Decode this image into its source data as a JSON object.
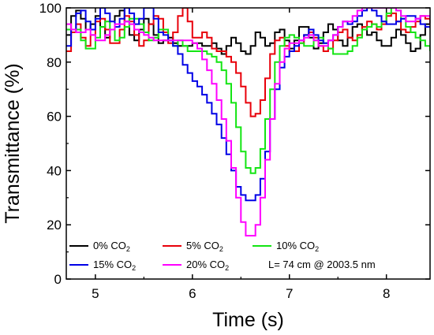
{
  "chart_data": {
    "type": "line",
    "xlabel": "Time (s)",
    "ylabel": "Transmittance (%)",
    "xlim": [
      4.7,
      8.45
    ],
    "ylim": [
      0,
      100
    ],
    "xticks": [
      5,
      6,
      7,
      8
    ],
    "yticks": [
      0,
      20,
      40,
      60,
      80,
      100
    ],
    "grid": false,
    "legend_position": "bottom-left inside",
    "annotation": "L= 74 cm @ 2003.5 nm",
    "series": [
      {
        "name": "0% CO",
        "name_subscript": "2",
        "color": "#000000",
        "x": [
          4.7,
          4.75,
          4.8,
          4.85,
          4.9,
          4.95,
          5.0,
          5.05,
          5.1,
          5.15,
          5.2,
          5.25,
          5.3,
          5.35,
          5.4,
          5.45,
          5.5,
          5.55,
          5.6,
          5.65,
          5.7,
          5.75,
          5.8,
          5.85,
          5.9,
          5.95,
          6.0,
          6.05,
          6.1,
          6.15,
          6.2,
          6.25,
          6.3,
          6.35,
          6.4,
          6.45,
          6.5,
          6.55,
          6.6,
          6.65,
          6.7,
          6.75,
          6.8,
          6.85,
          6.9,
          6.95,
          7.0,
          7.05,
          7.1,
          7.15,
          7.2,
          7.25,
          7.3,
          7.35,
          7.4,
          7.45,
          7.5,
          7.55,
          7.6,
          7.65,
          7.7,
          7.75,
          7.8,
          7.85,
          7.9,
          7.95,
          8.0,
          8.05,
          8.1,
          8.15,
          8.2,
          8.25,
          8.3,
          8.35,
          8.4,
          8.45
        ],
        "y": [
          90,
          97,
          99,
          96,
          92,
          94,
          97,
          93,
          89,
          92,
          97,
          99,
          95,
          90,
          88,
          92,
          96,
          94,
          90,
          87,
          88,
          89,
          87,
          86,
          86,
          86,
          87,
          87,
          86,
          86,
          87,
          85,
          83,
          86,
          89,
          87,
          84,
          83,
          86,
          91,
          89,
          86,
          87,
          91,
          92,
          88,
          85,
          88,
          93,
          93,
          89,
          85,
          87,
          91,
          94,
          92,
          88,
          86,
          89,
          93,
          94,
          92,
          90,
          91,
          88,
          86,
          86,
          89,
          92,
          90,
          87,
          84,
          85,
          90,
          94,
          95
        ]
      },
      {
        "name": "5% CO",
        "name_subscript": "2",
        "color": "#e8000a",
        "x": [
          4.7,
          4.75,
          4.8,
          4.85,
          4.9,
          4.95,
          5.0,
          5.05,
          5.1,
          5.15,
          5.2,
          5.25,
          5.3,
          5.35,
          5.4,
          5.45,
          5.5,
          5.55,
          5.6,
          5.65,
          5.7,
          5.75,
          5.8,
          5.85,
          5.9,
          5.95,
          6.0,
          6.05,
          6.1,
          6.15,
          6.2,
          6.25,
          6.3,
          6.35,
          6.4,
          6.45,
          6.5,
          6.55,
          6.6,
          6.65,
          6.7,
          6.75,
          6.8,
          6.85,
          6.9,
          6.95,
          7.0,
          7.05,
          7.1,
          7.15,
          7.2,
          7.25,
          7.3,
          7.35,
          7.4,
          7.45,
          7.5,
          7.55,
          7.6,
          7.65,
          7.7,
          7.75,
          7.8,
          7.85,
          7.9,
          7.95,
          8.0,
          8.05,
          8.1,
          8.15,
          8.2,
          8.25,
          8.3,
          8.35,
          8.4,
          8.45
        ],
        "y": [
          84,
          91,
          94,
          89,
          86,
          90,
          95,
          96,
          92,
          87,
          87,
          92,
          97,
          95,
          90,
          86,
          88,
          94,
          97,
          96,
          91,
          87,
          91,
          97,
          100,
          95,
          89,
          89,
          91,
          89,
          85,
          84,
          84,
          82,
          80,
          76,
          71,
          65,
          60,
          61,
          66,
          74,
          83,
          88,
          89,
          86,
          84,
          84,
          87,
          90,
          91,
          89,
          86,
          84,
          85,
          88,
          91,
          92,
          89,
          88,
          90,
          93,
          95,
          94,
          92,
          94,
          97,
          98,
          95,
          92,
          91,
          93,
          95,
          97,
          96,
          94
        ]
      },
      {
        "name": "10% CO",
        "name_subscript": "2",
        "color": "#13e513",
        "x": [
          4.7,
          4.75,
          4.8,
          4.85,
          4.9,
          4.95,
          5.0,
          5.05,
          5.1,
          5.15,
          5.2,
          5.25,
          5.3,
          5.35,
          5.4,
          5.45,
          5.5,
          5.55,
          5.6,
          5.65,
          5.7,
          5.75,
          5.8,
          5.85,
          5.9,
          5.95,
          6.0,
          6.05,
          6.1,
          6.15,
          6.2,
          6.25,
          6.3,
          6.35,
          6.4,
          6.45,
          6.5,
          6.55,
          6.6,
          6.65,
          6.7,
          6.75,
          6.8,
          6.85,
          6.9,
          6.95,
          7.0,
          7.05,
          7.1,
          7.15,
          7.2,
          7.25,
          7.3,
          7.35,
          7.4,
          7.45,
          7.5,
          7.55,
          7.6,
          7.65,
          7.7,
          7.75,
          7.8,
          7.85,
          7.9,
          7.95,
          8.0,
          8.05,
          8.1,
          8.15,
          8.2,
          8.25,
          8.3,
          8.35,
          8.4,
          8.45
        ],
        "y": [
          92,
          92,
          92,
          88,
          85,
          85,
          89,
          93,
          95,
          92,
          88,
          89,
          93,
          96,
          96,
          94,
          91,
          88,
          89,
          92,
          92,
          88,
          86,
          88,
          86,
          84,
          84,
          84,
          84,
          83,
          82,
          80,
          77,
          72,
          65,
          56,
          47,
          41,
          39,
          41,
          48,
          59,
          70,
          80,
          86,
          89,
          90,
          89,
          87,
          86,
          86,
          88,
          89,
          87,
          85,
          83,
          83,
          83,
          84,
          86,
          89,
          92,
          93,
          94,
          93,
          95,
          98,
          100,
          99,
          96,
          93,
          91,
          89,
          88,
          86,
          84
        ]
      },
      {
        "name": "15% CO",
        "name_subscript": "2",
        "color": "#0000e6",
        "x": [
          4.7,
          4.75,
          4.8,
          4.85,
          4.9,
          4.95,
          5.0,
          5.05,
          5.1,
          5.15,
          5.2,
          5.25,
          5.3,
          5.35,
          5.4,
          5.45,
          5.5,
          5.55,
          5.6,
          5.65,
          5.7,
          5.75,
          5.8,
          5.85,
          5.9,
          5.95,
          6.0,
          6.05,
          6.1,
          6.15,
          6.2,
          6.25,
          6.3,
          6.35,
          6.4,
          6.45,
          6.5,
          6.55,
          6.6,
          6.65,
          6.7,
          6.75,
          6.8,
          6.85,
          6.9,
          6.95,
          7.0,
          7.05,
          7.1,
          7.15,
          7.2,
          7.25,
          7.3,
          7.35,
          7.4,
          7.45,
          7.5,
          7.55,
          7.6,
          7.65,
          7.7,
          7.75,
          7.8,
          7.85,
          7.9,
          7.95,
          8.0,
          8.05,
          8.1,
          8.15,
          8.2,
          8.25,
          8.3,
          8.35,
          8.4,
          8.45
        ],
        "y": [
          86,
          92,
          98,
          99,
          95,
          92,
          96,
          100,
          98,
          95,
          93,
          96,
          100,
          98,
          94,
          96,
          100,
          100,
          96,
          91,
          90,
          88,
          86,
          83,
          79,
          76,
          73,
          71,
          68,
          65,
          61,
          57,
          52,
          46,
          40,
          34,
          31,
          29,
          29,
          31,
          37,
          47,
          59,
          70,
          78,
          82,
          84,
          86,
          88,
          90,
          92,
          90,
          88,
          87,
          88,
          90,
          93,
          95,
          94,
          95,
          97,
          99,
          100,
          99,
          97,
          95,
          94,
          94,
          95,
          96,
          97,
          97,
          96,
          94,
          93,
          93
        ]
      },
      {
        "name": "20% CO",
        "name_subscript": "2",
        "color": "#ff00ff",
        "x": [
          4.7,
          4.75,
          4.8,
          4.85,
          4.9,
          4.95,
          5.0,
          5.05,
          5.1,
          5.15,
          5.2,
          5.25,
          5.3,
          5.35,
          5.4,
          5.45,
          5.5,
          5.55,
          5.6,
          5.65,
          5.7,
          5.75,
          5.8,
          5.85,
          5.9,
          5.95,
          6.0,
          6.05,
          6.1,
          6.15,
          6.2,
          6.25,
          6.3,
          6.35,
          6.4,
          6.45,
          6.5,
          6.55,
          6.6,
          6.65,
          6.7,
          6.75,
          6.8,
          6.85,
          6.9,
          6.95,
          7.0,
          7.05,
          7.1,
          7.15,
          7.2,
          7.25,
          7.3,
          7.35,
          7.4,
          7.45,
          7.5,
          7.55,
          7.6,
          7.65,
          7.7,
          7.75,
          7.8,
          7.85,
          7.9,
          7.95,
          8.0,
          8.05,
          8.1,
          8.15,
          8.2,
          8.25,
          8.3,
          8.35,
          8.4,
          8.45
        ],
        "y": [
          94,
          92,
          91,
          91,
          92,
          90,
          88,
          88,
          90,
          92,
          94,
          94,
          95,
          94,
          92,
          91,
          90,
          89,
          88,
          88,
          88,
          88,
          88,
          88,
          88,
          88,
          87,
          85,
          81,
          77,
          72,
          66,
          59,
          51,
          41,
          30,
          21,
          16,
          16,
          20,
          30,
          44,
          59,
          72,
          80,
          85,
          87,
          87,
          88,
          89,
          90,
          88,
          86,
          86,
          88,
          90,
          93,
          95,
          95,
          97,
          99,
          100,
          100,
          100,
          100,
          100,
          100,
          100,
          99,
          97,
          95,
          95,
          96,
          97,
          97,
          96
        ]
      }
    ]
  }
}
